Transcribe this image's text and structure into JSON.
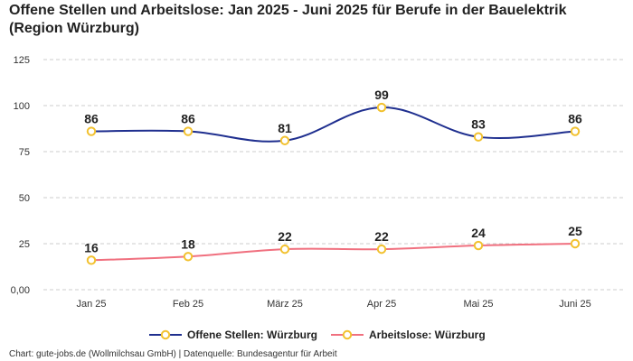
{
  "chart_data": {
    "type": "line",
    "title": "Offene Stellen und Arbeitslose: Jan 2025 - Juni 2025 für Berufe in der Bauelektrik (Region Würzburg)",
    "categories": [
      "Jan 25",
      "Feb 25",
      "März 25",
      "Apr 25",
      "Mai 25",
      "Juni 25"
    ],
    "y_ticks": [
      "0,00",
      "25",
      "50",
      "75",
      "100",
      "125"
    ],
    "ylim": [
      0,
      125
    ],
    "grid": true,
    "legend_position": "bottom",
    "series": [
      {
        "name": "Offene Stellen: Würzburg",
        "values": [
          86,
          86,
          81,
          99,
          83,
          86
        ],
        "color": "#1f2f8f"
      },
      {
        "name": "Arbeitslose: Würzburg",
        "values": [
          16,
          18,
          22,
          22,
          24,
          25
        ],
        "color": "#f0707f"
      }
    ],
    "marker_color": "#f2c12e"
  },
  "footer": {
    "source": "Chart: gute-jobs.de (Wollmilchsau GmbH) | Datenquelle: Bundesagentur für Arbeit"
  }
}
